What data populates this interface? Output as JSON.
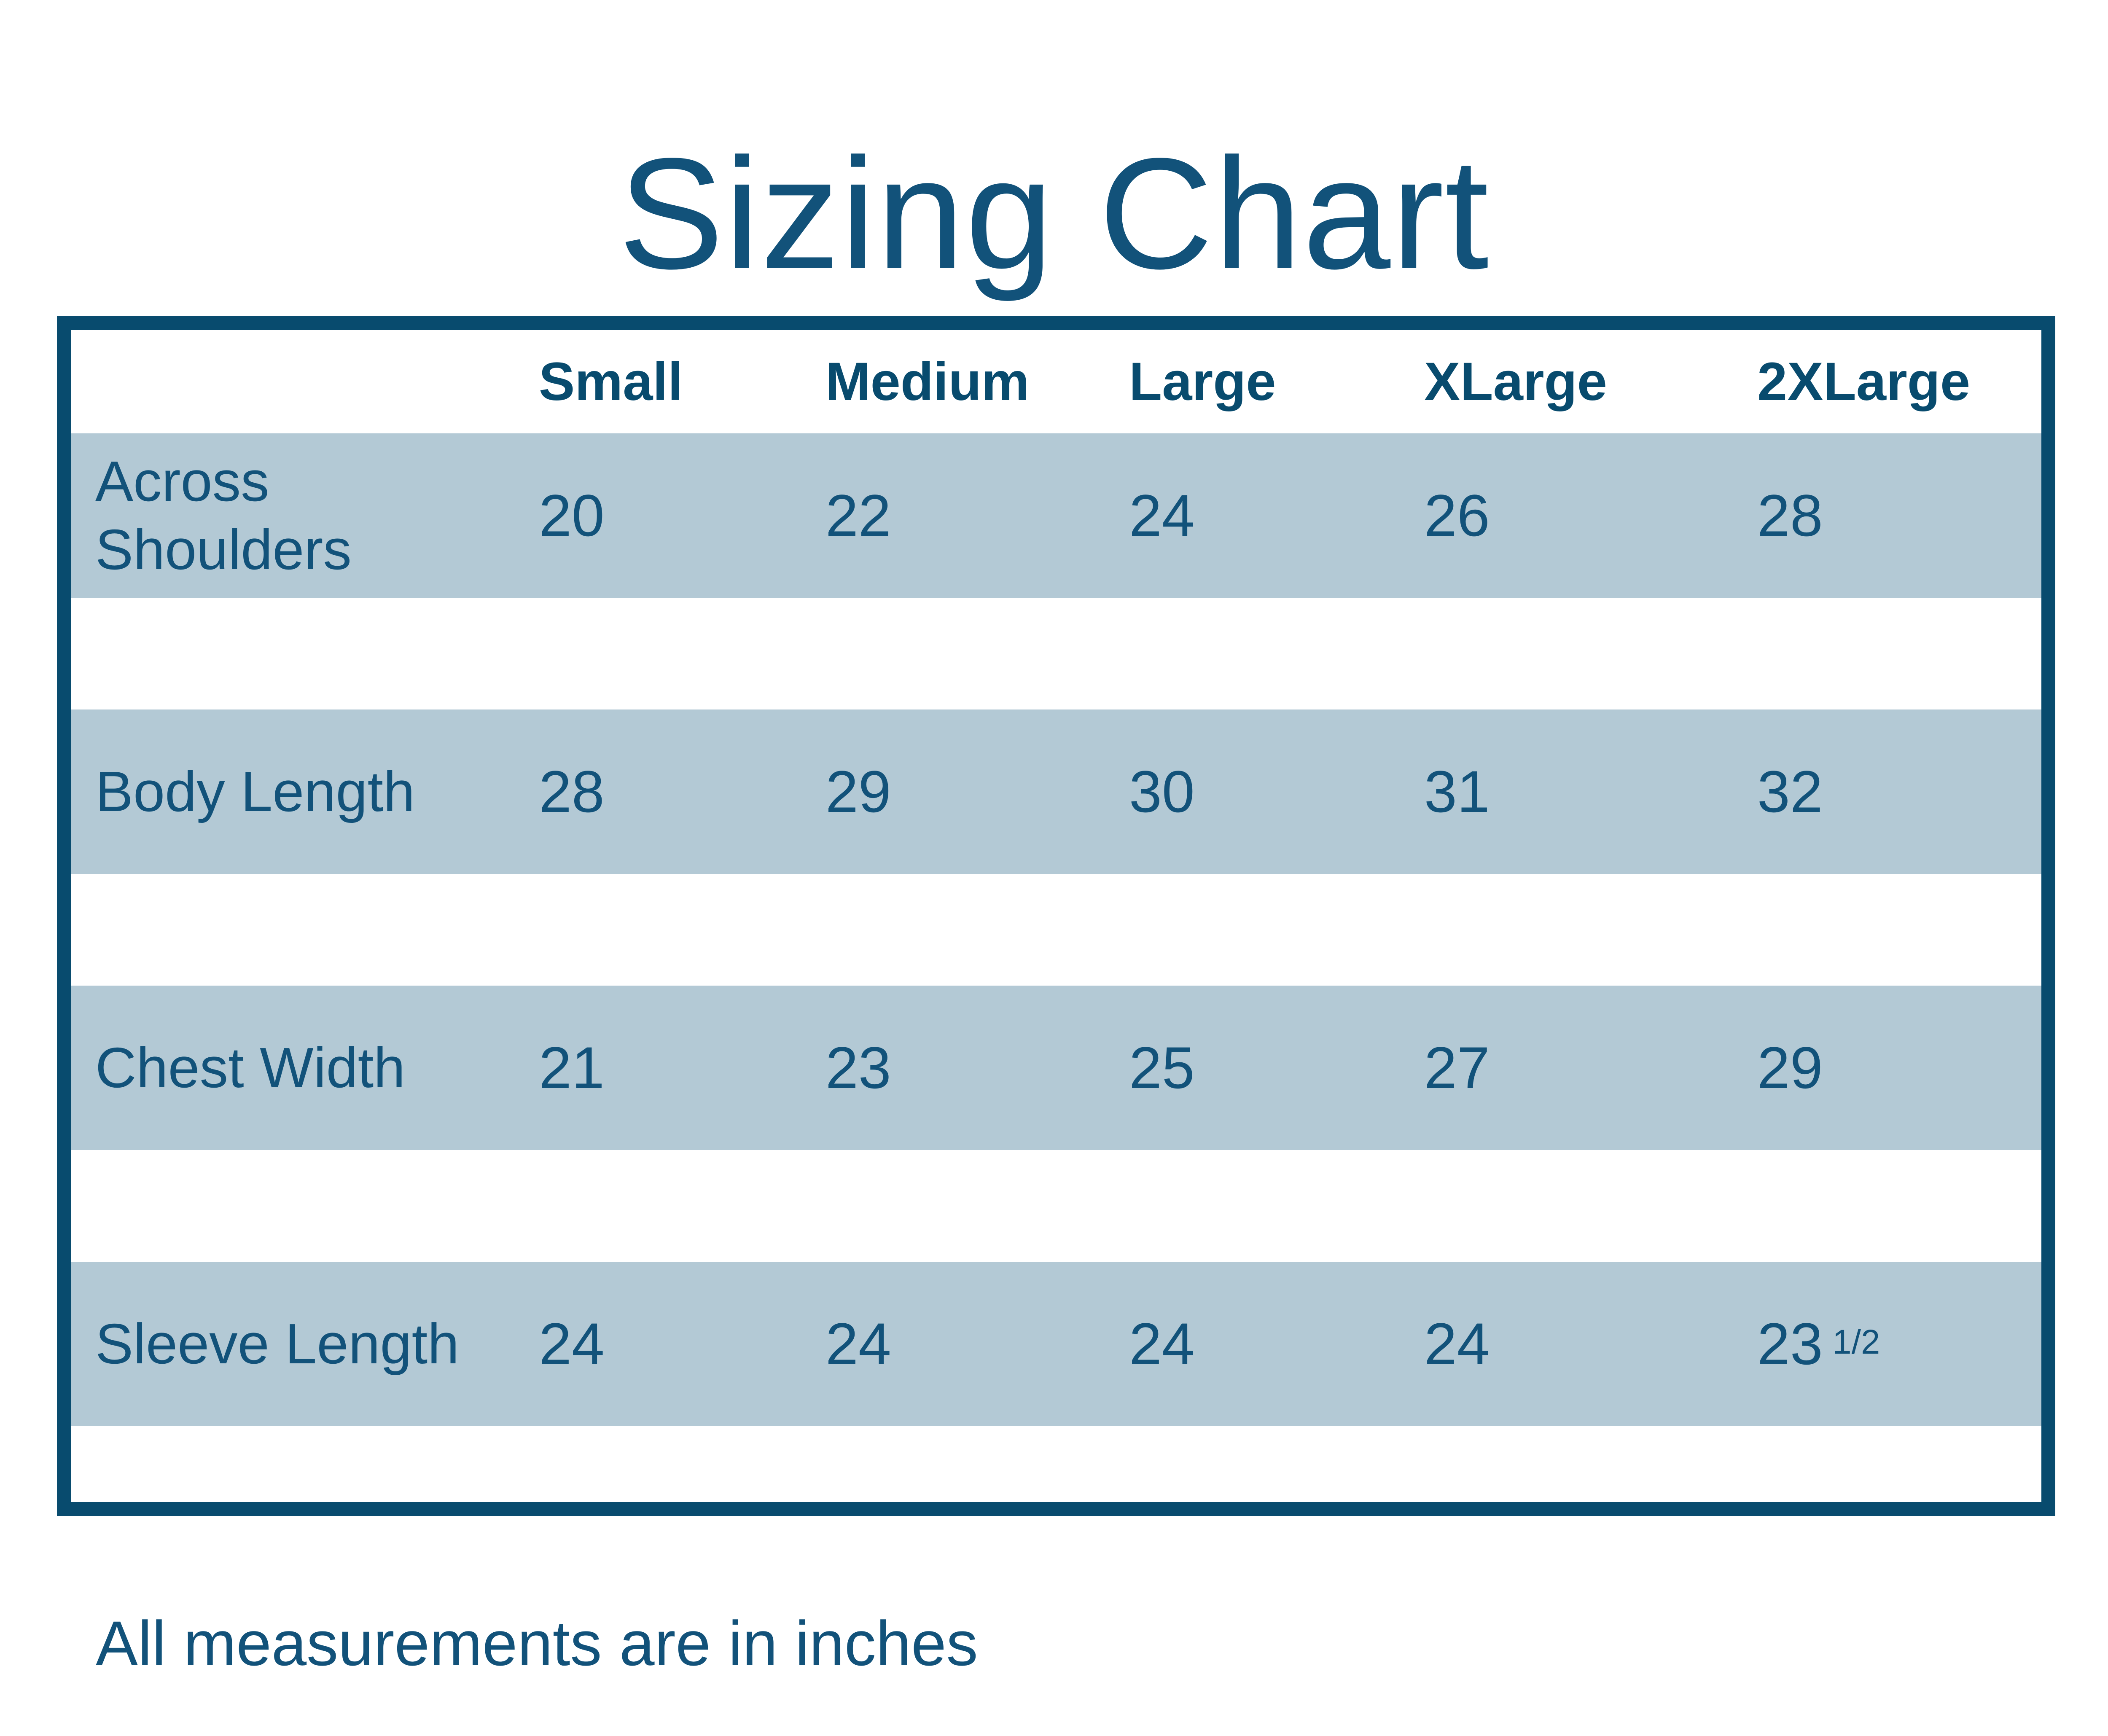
{
  "title": "Sizing Chart",
  "footer": "All measurements are in inches",
  "colors": {
    "navy": "#084b6e",
    "text_blue": "#12527a",
    "row_blue": "#b3c9d5",
    "page_bg": "#ffffff"
  },
  "chart_data": {
    "type": "table",
    "title": "Sizing Chart",
    "columns": [
      "Small",
      "Medium",
      "Large",
      "XLarge",
      "2XLarge"
    ],
    "rows": [
      {
        "label": "Across Shoulders",
        "values": [
          "20",
          "22",
          "24",
          "26",
          "28"
        ]
      },
      {
        "label": "Body Length",
        "values": [
          "28",
          "29",
          "30",
          "31",
          "32"
        ]
      },
      {
        "label": "Chest Width",
        "values": [
          "21",
          "23",
          "25",
          "27",
          "29"
        ]
      },
      {
        "label": "Sleeve Length",
        "values": [
          "24",
          "24",
          "24",
          "24",
          "23 1/2"
        ]
      }
    ],
    "footnote": "All measurements are in inches",
    "layout": {
      "alternating_row_fill": true,
      "grid": "off",
      "measurement_unit": "inches"
    }
  }
}
